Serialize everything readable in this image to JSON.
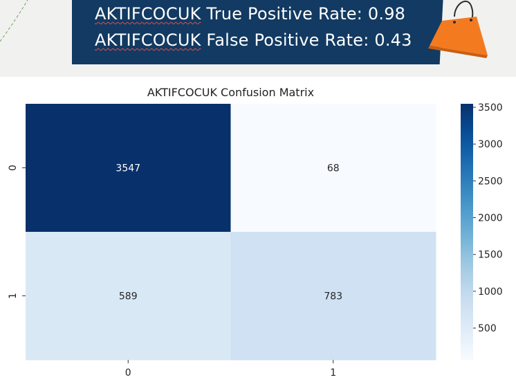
{
  "banner": {
    "line1_name": "AKTIFCOCUK",
    "line1_text": "True Positive Rate: 0.98",
    "line2_name": "AKTIFCOCUK",
    "line2_text": "False Positive Rate: 0.43"
  },
  "colors": {
    "banner_bg": "#123a62",
    "band_bg": "#f1f1f0",
    "bag": "#f47a20"
  },
  "chart_data": {
    "type": "heatmap",
    "title": "AKTIFCOCUK Confusion Matrix",
    "row_labels": [
      "0",
      "1"
    ],
    "col_labels": [
      "0",
      "1"
    ],
    "values": [
      [
        3547,
        68
      ],
      [
        589,
        783
      ]
    ],
    "annotations": [
      [
        "3547",
        "68"
      ],
      [
        "589",
        "783"
      ]
    ],
    "colormap": "Blues",
    "vmin": 68,
    "vmax": 3547,
    "colorbar_ticks": [
      500,
      1000,
      1500,
      2000,
      2500,
      3000,
      3500
    ],
    "xlabel": "",
    "ylabel": ""
  }
}
